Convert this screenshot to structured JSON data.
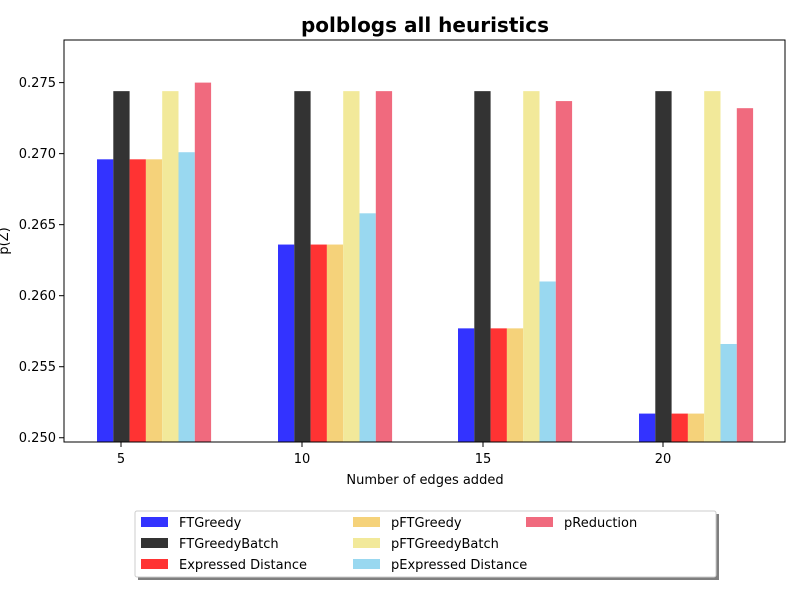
{
  "chart_data": {
    "type": "bar",
    "title": "polblogs all heuristics",
    "xlabel": "Number of edges added",
    "ylabel": "p(Z)",
    "categories": [
      "5",
      "10",
      "15",
      "20"
    ],
    "ylim": [
      0.2497,
      0.278
    ],
    "yticks": [
      "0.250",
      "0.255",
      "0.260",
      "0.265",
      "0.270",
      "0.275"
    ],
    "grid": false,
    "legend_position": "bottom",
    "series": [
      {
        "name": "FTGreedy",
        "color": "#3333ff",
        "values": [
          0.2696,
          0.2636,
          0.2577,
          0.2517
        ]
      },
      {
        "name": "FTGreedyBatch",
        "color": "#333333",
        "values": [
          0.2744,
          0.2744,
          0.2744,
          0.2744
        ]
      },
      {
        "name": "Expressed Distance",
        "color": "#ff3333",
        "values": [
          0.2696,
          0.2636,
          0.2577,
          0.2517
        ]
      },
      {
        "name": "pFTGreedy",
        "color": "#f5d27a",
        "values": [
          0.2696,
          0.2636,
          0.2577,
          0.2517
        ]
      },
      {
        "name": "pFTGreedyBatch",
        "color": "#f2e99a",
        "values": [
          0.2744,
          0.2744,
          0.2744,
          0.2744
        ]
      },
      {
        "name": "pExpressed Distance",
        "color": "#99d8f0",
        "values": [
          0.2701,
          0.2658,
          0.261,
          0.2566
        ]
      },
      {
        "name": "pReduction",
        "color": "#f06a7e",
        "values": [
          0.275,
          0.2744,
          0.2737,
          0.2732
        ]
      }
    ]
  }
}
